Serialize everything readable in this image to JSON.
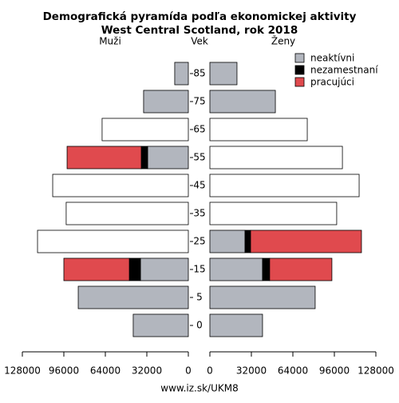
{
  "chart_data": {
    "type": "pyramid",
    "title": "Demografická pyramída podľa ekonomickej aktivity",
    "subtitle": "West Central Scotland, rok 2018",
    "left_label": "Muži",
    "center_label": "Vek",
    "right_label": "Ženy",
    "categories": [
      "0",
      "5",
      "15",
      "25",
      "35",
      "45",
      "55",
      "65",
      "75",
      "85"
    ],
    "xlim": [
      0,
      128000
    ],
    "xticks": [
      128000,
      96000,
      64000,
      32000,
      0
    ],
    "series": [
      {
        "name": "neaktívni",
        "color": "#b2b6be",
        "male": [
          42500,
          84900,
          36900,
          null,
          null,
          null,
          31400,
          null,
          34500,
          10500
        ],
        "female": [
          40600,
          81200,
          40600,
          27100,
          null,
          null,
          null,
          null,
          50500,
          20900
        ]
      },
      {
        "name": "nezamestnaní",
        "color": "#000000",
        "male": [
          null,
          null,
          8600,
          null,
          null,
          null,
          4900,
          null,
          null,
          null
        ],
        "female": [
          null,
          null,
          5500,
          4300,
          null,
          null,
          null,
          null,
          null,
          null
        ]
      },
      {
        "name": "pracujúci",
        "color": "#e04a4e",
        "male": [
          null,
          null,
          50500,
          null,
          null,
          null,
          57200,
          null,
          null,
          null
        ],
        "female": [
          null,
          null,
          48000,
          85500,
          null,
          null,
          null,
          null,
          null,
          null
        ]
      },
      {
        "color": "#ffffff",
        "male": [
          null,
          null,
          null,
          116300,
          94200,
          104600,
          null,
          66500,
          null,
          null
        ],
        "female": [
          null,
          null,
          null,
          null,
          97800,
          115100,
          102200,
          75100,
          null,
          null
        ]
      }
    ],
    "source": "www.iz.sk/UKM8"
  }
}
